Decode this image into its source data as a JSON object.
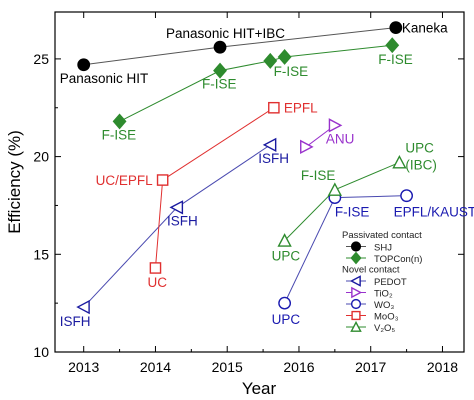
{
  "chart_data": {
    "type": "scatter",
    "xlabel": "Year",
    "ylabel": "Efficiency (%)",
    "xlim": [
      2012.6,
      2018.3
    ],
    "ylim": [
      10,
      27.4
    ],
    "xticks": [
      2013,
      2014,
      2015,
      2016,
      2017,
      2018
    ],
    "xtick_labels": [
      "2013",
      "2014",
      "2015",
      "2016",
      "2017",
      "2018"
    ],
    "yticks": [
      10,
      15,
      20,
      25
    ],
    "ytick_labels": [
      "10",
      "15",
      "20",
      "25"
    ],
    "grid": false,
    "legend": {
      "placement": "bottom-right",
      "groups": [
        {
          "title": "Passivated contact",
          "entries": [
            "SHJ",
            "TOPCon(n)"
          ]
        },
        {
          "title": "Novel contact",
          "entries": [
            "PEDOT",
            "TiO2",
            "WO3",
            "MoO3",
            "V2O5"
          ]
        }
      ]
    },
    "series": [
      {
        "name": "SHJ",
        "marker": "circle",
        "filled": true,
        "color": "#000000",
        "line_color": "#555555",
        "points": [
          [
            2013.0,
            24.7
          ],
          [
            2014.9,
            25.6
          ],
          [
            2017.35,
            26.6
          ]
        ],
        "labels": [
          "Panasonic HIT",
          "Panasonic HIT+IBC",
          "Kaneka"
        ]
      },
      {
        "name": "TOPCon(n)",
        "marker": "diamond",
        "filled": true,
        "color": "#2e8b2e",
        "line_color": "#2e8b2e",
        "points": [
          [
            2013.5,
            21.8
          ],
          [
            2014.9,
            24.4
          ],
          [
            2015.6,
            24.9
          ],
          [
            2015.8,
            25.1
          ],
          [
            2017.3,
            25.7
          ]
        ],
        "labels": [
          "F-ISE",
          "F-ISE",
          "",
          "F-ISE",
          "F-ISE"
        ]
      },
      {
        "name": "PEDOT",
        "marker": "triangle-left",
        "filled": false,
        "color": "#1a1aa0",
        "line_color": "#4a4ab0",
        "points": [
          [
            2013.0,
            12.3
          ],
          [
            2014.3,
            17.4
          ],
          [
            2015.6,
            20.6
          ]
        ],
        "labels": [
          "ISFH",
          "ISFH",
          "ISFH"
        ]
      },
      {
        "name": "TiO2",
        "marker": "triangle-right",
        "filled": false,
        "color": "#9932cc",
        "line_color": "#9932cc",
        "points": [
          [
            2016.1,
            20.5
          ],
          [
            2016.5,
            21.6
          ]
        ],
        "labels": [
          "",
          "ANU"
        ]
      },
      {
        "name": "WO3",
        "marker": "circle",
        "filled": false,
        "color": "#1a1ab0",
        "line_color": "#4a4ab0",
        "points": [
          [
            2015.8,
            12.5
          ],
          [
            2016.5,
            17.9
          ],
          [
            2017.5,
            18.0
          ]
        ],
        "labels": [
          "UPC",
          "F-ISE",
          "EPFL/KAUST"
        ]
      },
      {
        "name": "MoO3",
        "marker": "square",
        "filled": false,
        "color": "#e03030",
        "line_color": "#e03030",
        "points": [
          [
            2014.0,
            14.3
          ],
          [
            2014.1,
            18.8
          ],
          [
            2015.65,
            22.5
          ]
        ],
        "labels": [
          "UC",
          "UC/EPFL",
          "EPFL"
        ]
      },
      {
        "name": "V2O5",
        "marker": "triangle-up",
        "filled": false,
        "color": "#2e8b2e",
        "line_color": "#2e8b2e",
        "points": [
          [
            2015.8,
            15.7
          ],
          [
            2016.5,
            18.3
          ],
          [
            2017.4,
            19.7
          ]
        ],
        "labels": [
          "UPC",
          "F-ISE",
          "UPC\n(IBC)"
        ]
      }
    ]
  }
}
